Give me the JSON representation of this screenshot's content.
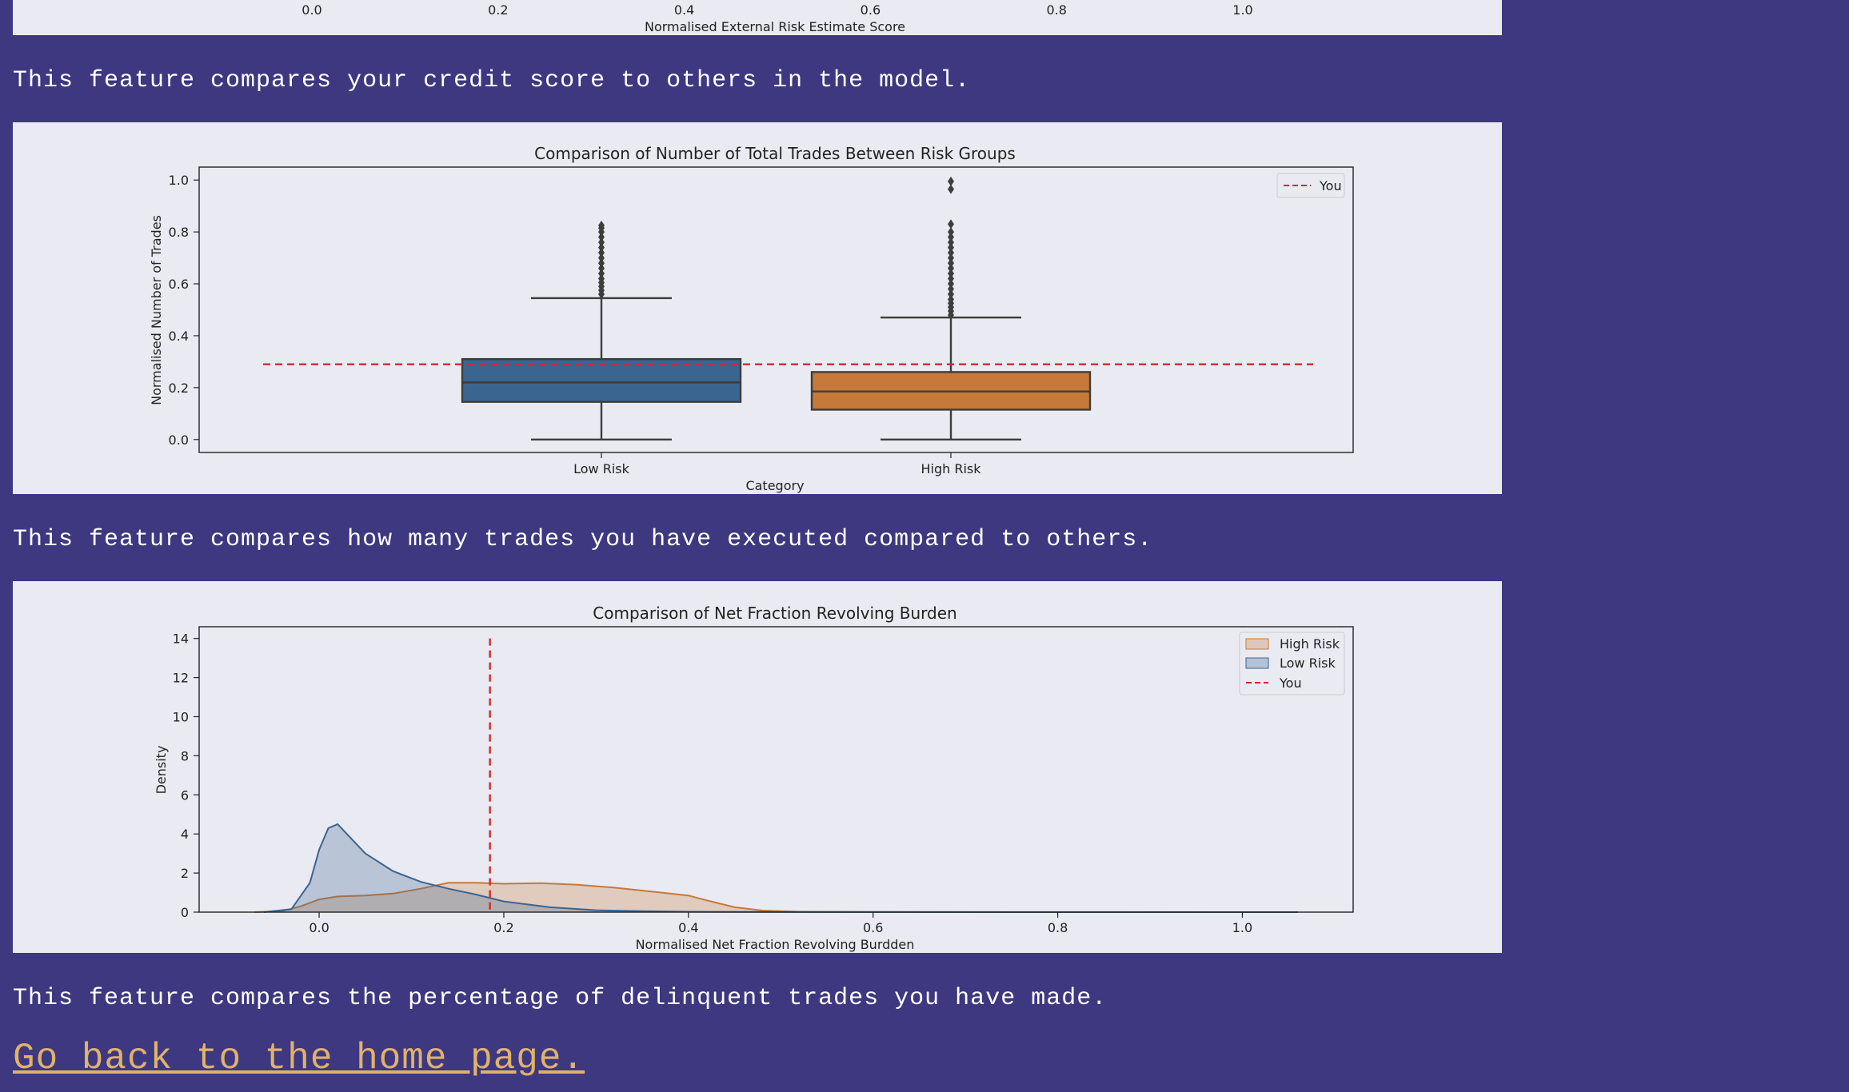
{
  "descriptions": {
    "credit": "This feature compares your credit score to others in the model.",
    "trades": "This feature compares how many trades you have executed compared to others.",
    "delinquent": "This feature compares the percentage of delinquent trades you have made."
  },
  "home_link": "Go back to the home page.",
  "colors": {
    "background": "#3d3880",
    "panel": "#eaeaf2",
    "low_risk": "#3a6591",
    "high_risk": "#c6793a",
    "you_line": "#d62728",
    "link": "#e0b26a"
  },
  "chart_data": [
    {
      "type": "kde",
      "title": "",
      "xlabel": "Normalised External Risk Estimate Score",
      "x_ticks": [
        0.0,
        0.2,
        0.4,
        0.6,
        0.8,
        1.0
      ],
      "x_tick_labels": [
        "0.0",
        "0.2",
        "0.4",
        "0.6",
        "0.8",
        "1.0"
      ],
      "partially_visible": true
    },
    {
      "type": "box",
      "title": "Comparison of Number of Total Trades Between Risk Groups",
      "xlabel": "Category",
      "ylabel": "Normalised Number of Trades",
      "ylim": [
        -0.05,
        1.05
      ],
      "y_ticks": [
        0.0,
        0.2,
        0.4,
        0.6,
        0.8,
        1.0
      ],
      "y_tick_labels": [
        "0.0",
        "0.2",
        "0.4",
        "0.6",
        "0.8",
        "1.0"
      ],
      "legend": {
        "position": "top-right",
        "entries": [
          "You"
        ]
      },
      "you_value": 0.29,
      "categories": [
        "Low Risk",
        "High Risk"
      ],
      "boxes": [
        {
          "name": "Low Risk",
          "color": "#3a6591",
          "whisker_low": 0.0,
          "q1": 0.145,
          "median": 0.22,
          "q3": 0.31,
          "whisker_high": 0.545,
          "outliers": [
            0.56,
            0.575,
            0.59,
            0.605,
            0.62,
            0.64,
            0.66,
            0.68,
            0.7,
            0.72,
            0.74,
            0.76,
            0.78,
            0.8,
            0.815,
            0.825
          ]
        },
        {
          "name": "High Risk",
          "color": "#c6793a",
          "whisker_low": 0.0,
          "q1": 0.115,
          "median": 0.185,
          "q3": 0.26,
          "whisker_high": 0.47,
          "outliers": [
            0.48,
            0.495,
            0.51,
            0.525,
            0.54,
            0.56,
            0.58,
            0.6,
            0.62,
            0.64,
            0.66,
            0.68,
            0.7,
            0.72,
            0.74,
            0.76,
            0.78,
            0.8,
            0.83,
            0.965,
            0.995
          ]
        }
      ]
    },
    {
      "type": "kde",
      "title": "Comparison of Net Fraction Revolving Burden",
      "xlabel": "Normalised Net Fraction Revolving Burdden",
      "ylabel": "Density",
      "xlim": [
        -0.13,
        1.12
      ],
      "ylim": [
        0,
        14.6
      ],
      "x_ticks": [
        0.0,
        0.2,
        0.4,
        0.6,
        0.8,
        1.0
      ],
      "x_tick_labels": [
        "0.0",
        "0.2",
        "0.4",
        "0.6",
        "0.8",
        "1.0"
      ],
      "y_ticks": [
        0,
        2,
        4,
        6,
        8,
        10,
        12,
        14
      ],
      "y_tick_labels": [
        "0",
        "2",
        "4",
        "6",
        "8",
        "10",
        "12",
        "14"
      ],
      "legend": {
        "position": "top-right",
        "entries": [
          "High Risk",
          "Low Risk",
          "You"
        ]
      },
      "you_value": 0.185,
      "you_line_top": 14.0,
      "series": [
        {
          "name": "High Risk",
          "color": "#c6793a",
          "x": [
            -0.07,
            -0.04,
            -0.02,
            0.0,
            0.02,
            0.05,
            0.08,
            0.11,
            0.14,
            0.17,
            0.2,
            0.24,
            0.28,
            0.32,
            0.36,
            0.4,
            0.42,
            0.45,
            0.48,
            0.52,
            0.6,
            0.8,
            1.0,
            1.06
          ],
          "y": [
            0.0,
            0.05,
            0.3,
            0.65,
            0.8,
            0.85,
            0.95,
            1.2,
            1.5,
            1.5,
            1.45,
            1.48,
            1.4,
            1.25,
            1.05,
            0.85,
            0.6,
            0.25,
            0.08,
            0.02,
            0.01,
            0.005,
            0.002,
            0.0
          ]
        },
        {
          "name": "Low Risk",
          "color": "#3a6591",
          "x": [
            -0.06,
            -0.03,
            -0.01,
            0.0,
            0.01,
            0.02,
            0.03,
            0.05,
            0.08,
            0.11,
            0.14,
            0.17,
            0.2,
            0.25,
            0.3,
            0.35,
            0.4,
            0.5,
            0.6,
            0.8,
            1.0,
            1.06
          ],
          "y": [
            0.0,
            0.15,
            1.5,
            3.2,
            4.3,
            4.5,
            4.0,
            3.0,
            2.1,
            1.55,
            1.2,
            0.9,
            0.55,
            0.25,
            0.1,
            0.05,
            0.02,
            0.01,
            0.005,
            0.002,
            0.001,
            0.0
          ]
        }
      ]
    }
  ]
}
